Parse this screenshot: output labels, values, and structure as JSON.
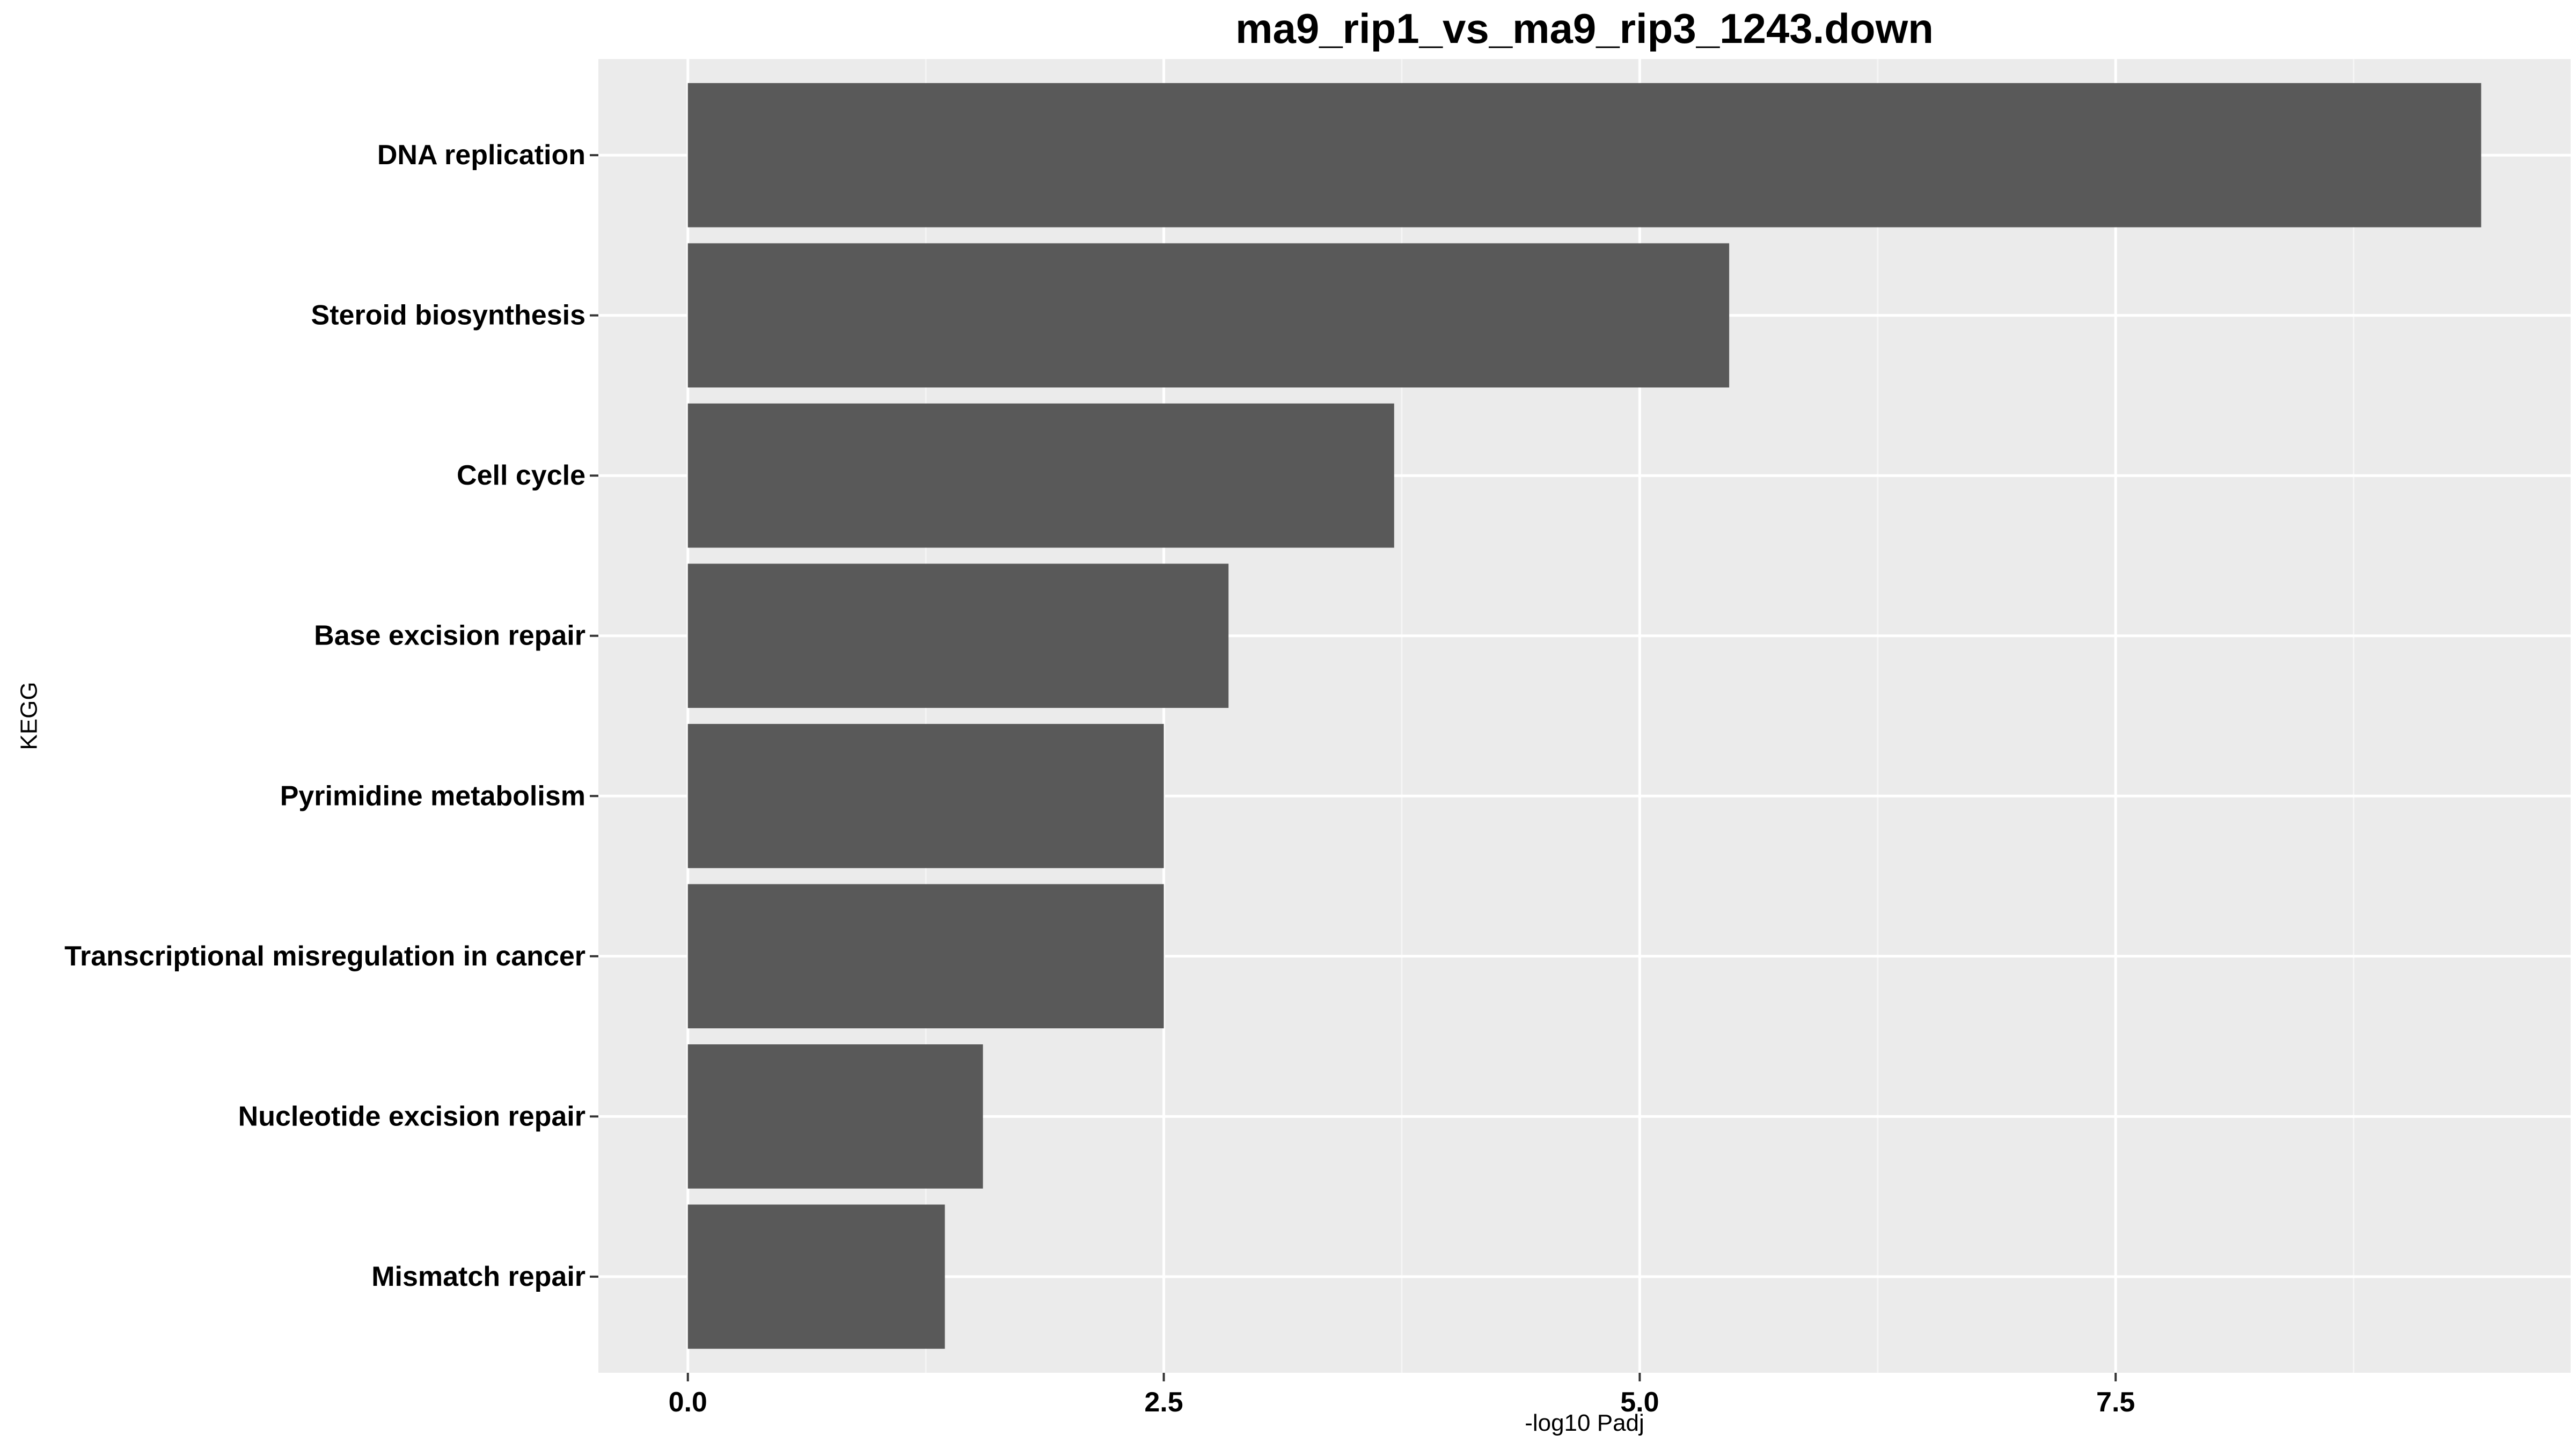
{
  "chart_data": {
    "type": "bar",
    "orientation": "horizontal",
    "title": "ma9_rip1_vs_ma9_rip3_1243.down",
    "xlabel": "-log10 Padj",
    "ylabel": "KEGG",
    "categories": [
      "DNA replication",
      "Steroid biosynthesis",
      "Cell cycle",
      "Base excision repair",
      "Pyrimidine metabolism",
      "Transcriptional misregulation in cancer",
      "Nucleotide excision repair",
      "Mismatch repair"
    ],
    "values": [
      9.42,
      5.47,
      3.71,
      2.84,
      2.5,
      2.5,
      1.55,
      1.35
    ],
    "xlim": [
      -0.47,
      9.89
    ],
    "xticks": [
      0,
      2.5,
      5,
      7.5
    ],
    "xtick_labels": [
      "0.0",
      "2.5",
      "5.0",
      "7.5"
    ],
    "grid": true,
    "legend": "none",
    "colors": {
      "panel_background": "#ebebeb",
      "grid_major": "#ffffff",
      "grid_minor": "#f5f5f5",
      "bar_fill": "#595959",
      "tick": "#333333",
      "text": "#000000"
    }
  }
}
